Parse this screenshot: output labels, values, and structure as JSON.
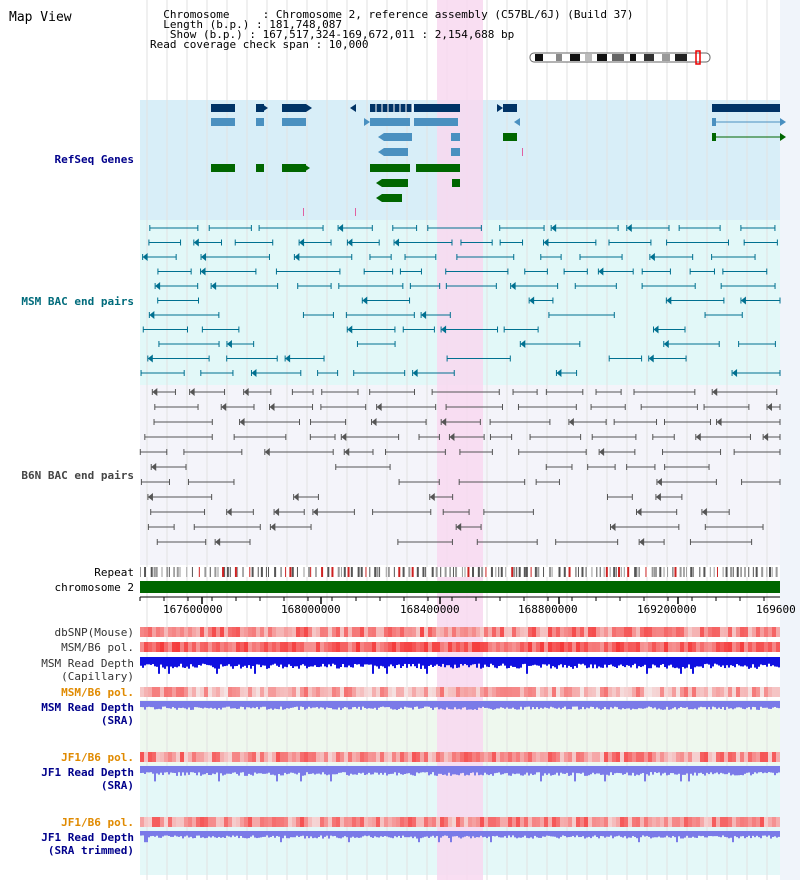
{
  "title": "Map View",
  "info": {
    "lines": [
      "  Chromosome     : Chromosome 2, reference assembly (C57BL/6J) (Build 37)",
      "  Length (b.p.) : 181,748,087",
      "   Show (b.p.) : 167,517,324-169,672,011 : 2,154,688 bp",
      "Read coverage check span : 10,000"
    ]
  },
  "tracks": {
    "refseq": "RefSeq Genes",
    "msm_bac": "MSM BAC end pairs",
    "b6n_bac": "B6N BAC end pairs",
    "repeat": "Repeat",
    "chromosome": "chromosome 2",
    "dbsnp": "dbSNP(Mouse)",
    "msm_b6_pol_1": "MSM/B6 pol.",
    "msm_depth_cap": "MSM Read Depth\n(Capillary)",
    "msm_b6_pol_2": "MSM/B6 pol.",
    "msm_depth_sra": "MSM Read Depth\n(SRA)",
    "jf1_b6_pol_1": "JF1/B6 pol.",
    "jf1_depth_sra": "JF1 Read Depth\n(SRA)",
    "jf1_b6_pol_2": "JF1/B6 pol.",
    "jf1_depth_trim": "JF1 Read Depth\n(SRA trimmed)"
  },
  "ruler": {
    "ticks": [
      "167600000",
      "168000000",
      "168400000",
      "168800000",
      "169200000",
      "169600"
    ]
  },
  "colors": {
    "label_black": "#000000",
    "label_blue": "#00008b",
    "label_teal": "#006b7b",
    "label_slate": "#444444",
    "label_orange": "#e08a00",
    "refseq_band": "#d8eef8",
    "msm_band": "#e2f8f8",
    "b6n_band": "#f4f4fa",
    "highlight": "#f8d8f0",
    "gene_dark": "#003366",
    "gene_mid": "#4a90c0",
    "gene_green": "#006600",
    "msm_line": "#007090",
    "b6n_line": "#555555",
    "chrom_green": "#006600",
    "depth_blue": "#1010e0",
    "depth_light": "#7a7ae8"
  }
}
